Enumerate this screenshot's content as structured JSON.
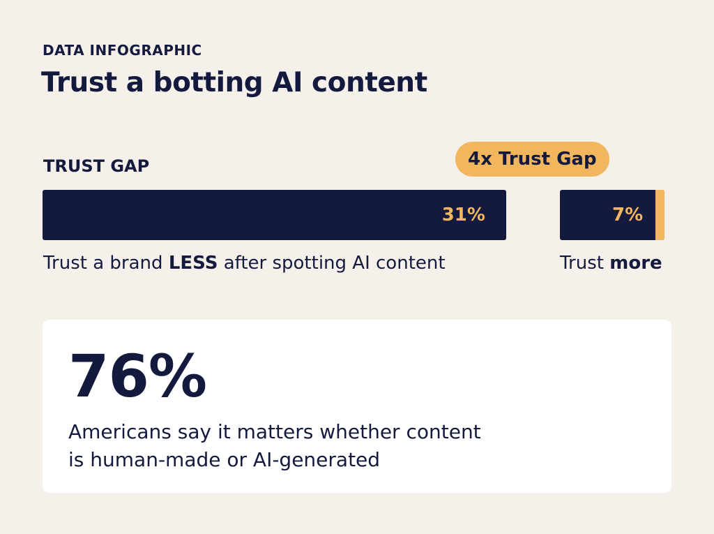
{
  "header": {
    "eyebrow": "DATA INFOGRAPHIC",
    "title": "Trust a botting AI content"
  },
  "trust_gap": {
    "label": "TRUST GAP",
    "badge": "4x Trust Gap",
    "bars": [
      {
        "value": 31,
        "value_label": "31%",
        "caption_parts": [
          "Trust a brand ",
          "LESS",
          " after spotting AI content"
        ]
      },
      {
        "value": 7,
        "value_label": "7%",
        "caption_parts": [
          "Trust ",
          "more"
        ]
      }
    ]
  },
  "stat": {
    "value_label": "76%",
    "text_lines": [
      "Americans say it matters whether content",
      "is human-made or AI-generated"
    ]
  }
}
